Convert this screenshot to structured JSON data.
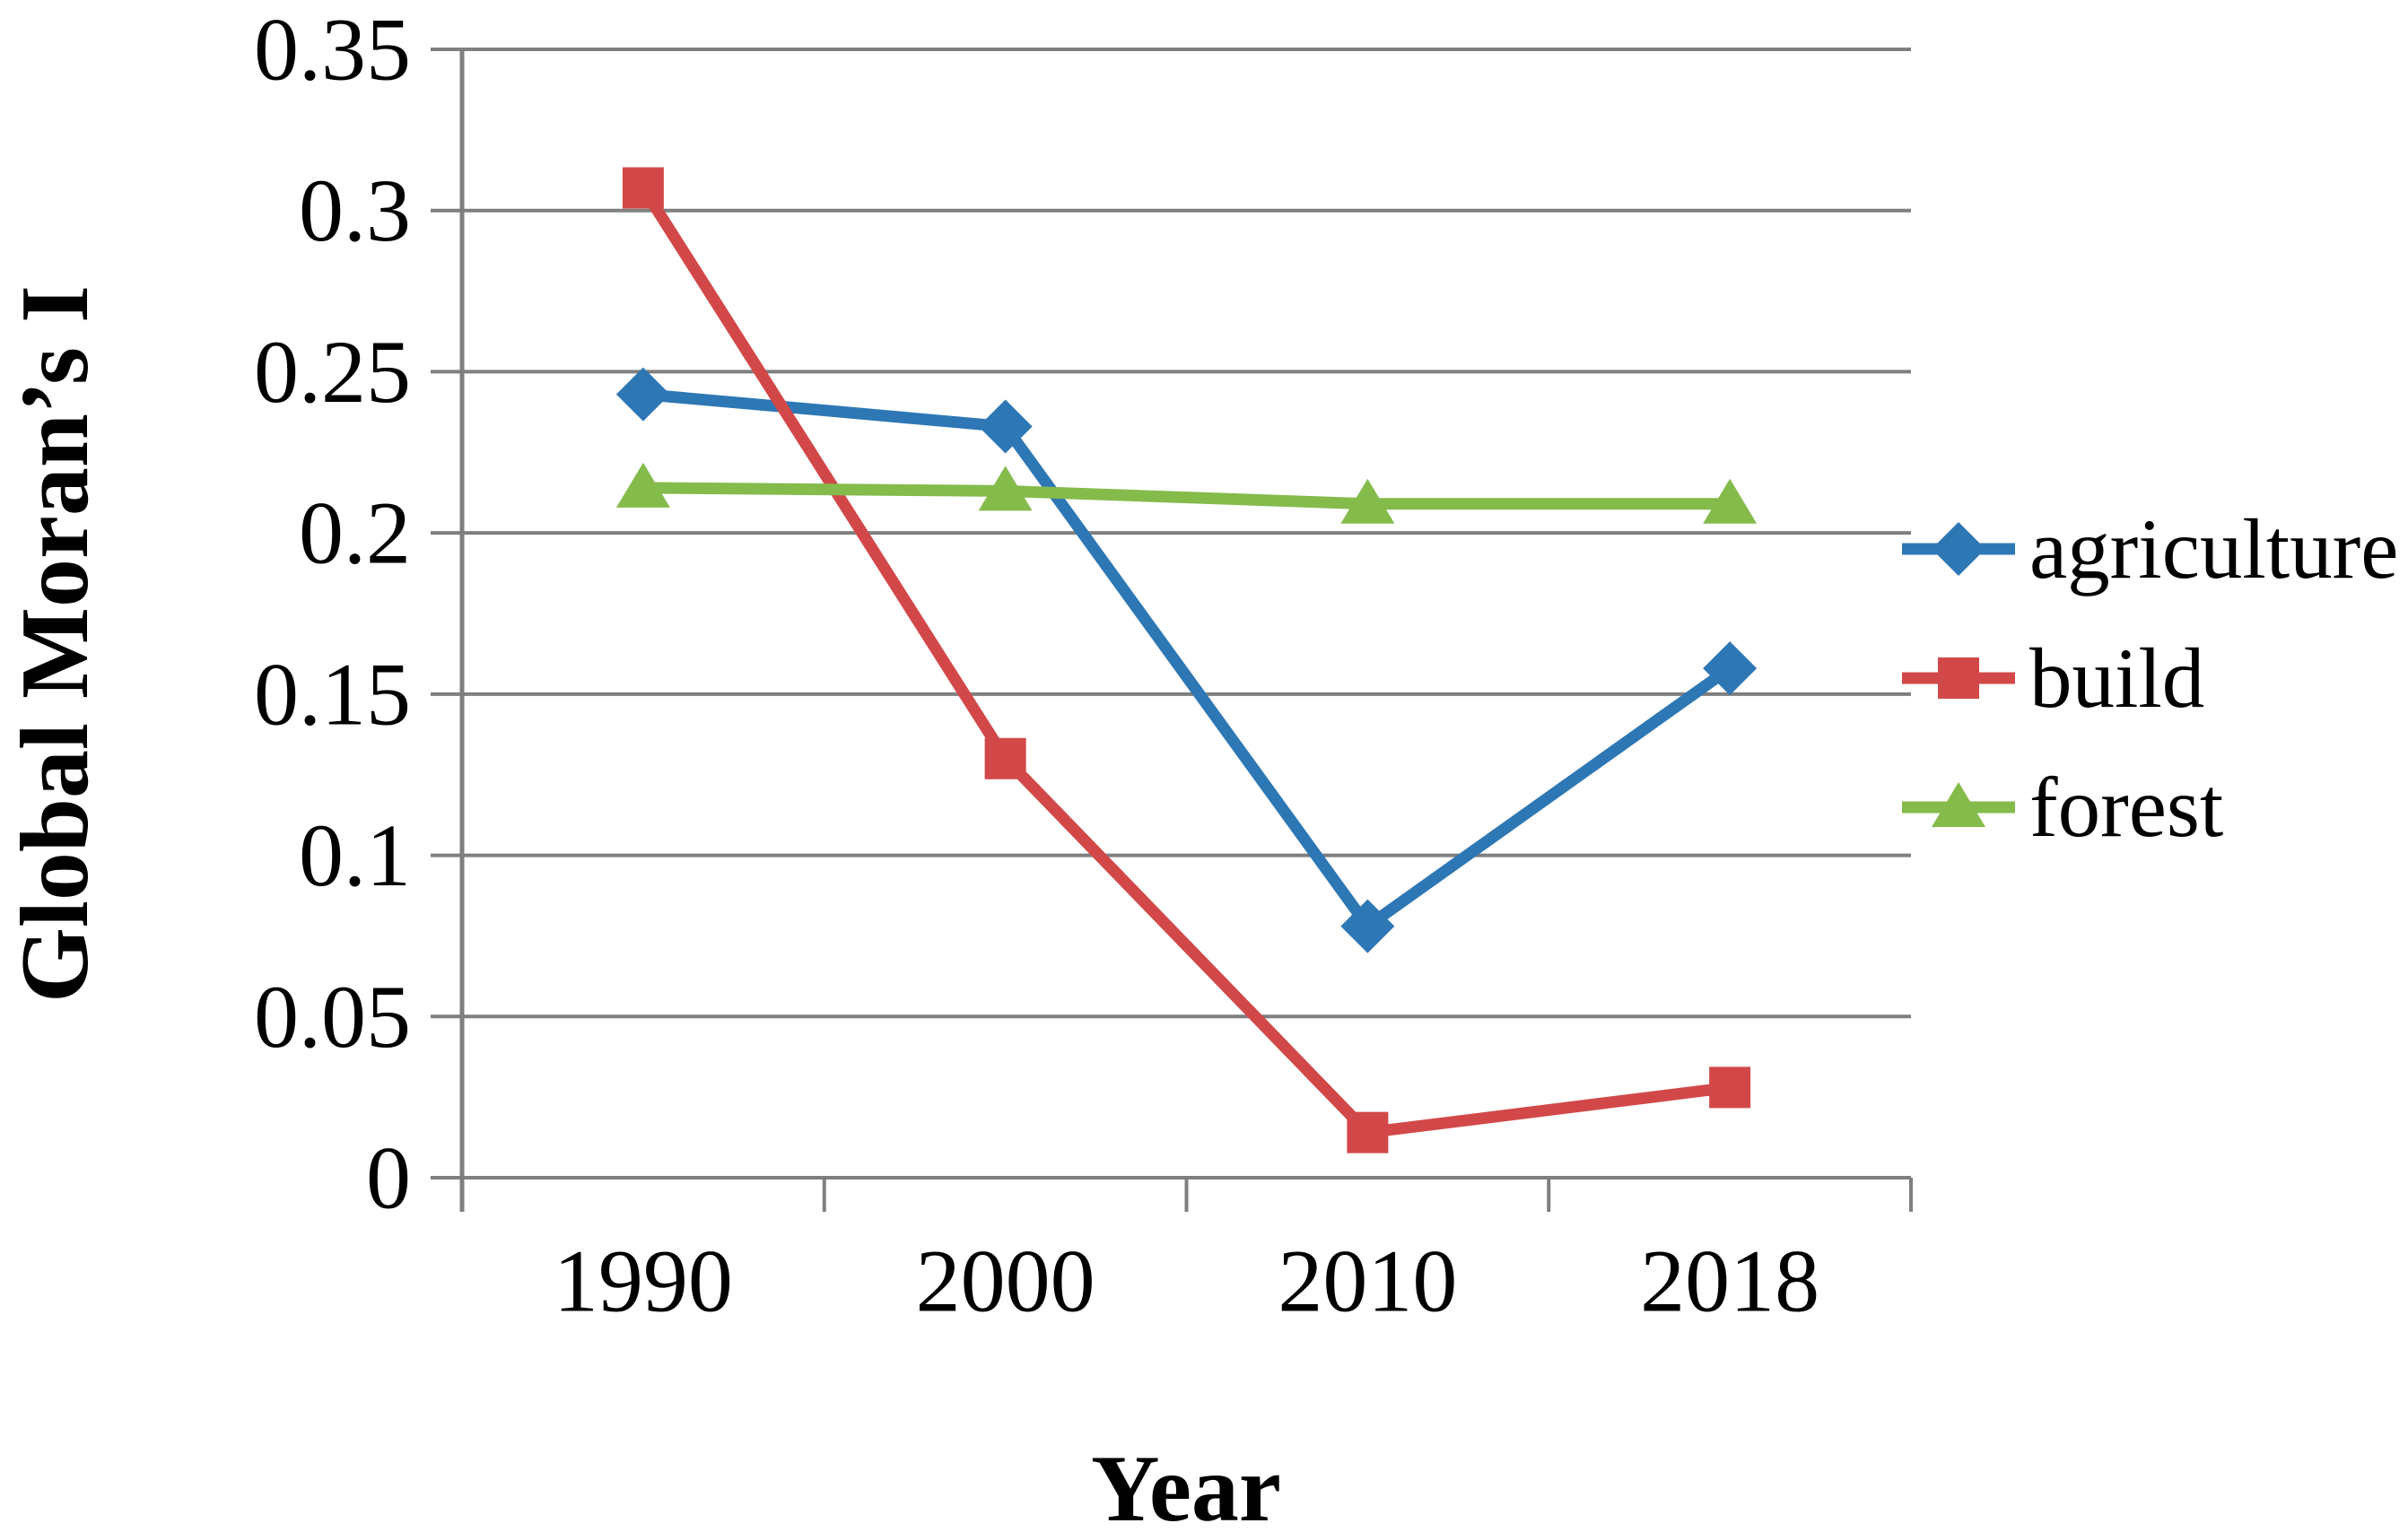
{
  "figure": {
    "y_axis_title": "Global Moran’s I",
    "x_axis_title": "Year"
  },
  "chart_data": {
    "type": "line",
    "title": "",
    "xlabel": "Year",
    "ylabel": "Global Moran’s I",
    "categories": [
      "1990",
      "2000",
      "2010",
      "2018"
    ],
    "series": [
      {
        "name": "agriculture",
        "marker": "diamond",
        "color": "#2E77B5",
        "values": [
          0.243,
          0.233,
          0.078,
          0.158
        ]
      },
      {
        "name": "build",
        "marker": "square",
        "color": "#D24849",
        "values": [
          0.307,
          0.13,
          0.014,
          0.028
        ]
      },
      {
        "name": "forest",
        "marker": "triangle",
        "color": "#84BB4B",
        "values": [
          0.214,
          0.213,
          0.209,
          0.209
        ]
      }
    ],
    "ylim": [
      0,
      0.35
    ],
    "ytick_step": 0.05,
    "ytick_labels": [
      "0",
      "0.05",
      "0.1",
      "0.15",
      "0.2",
      "0.25",
      "0.3",
      "0.35"
    ],
    "grid": true,
    "legend_position": "right",
    "style": {
      "grid_color": "#7F7F7F",
      "axis_color": "#7F7F7F",
      "text_color": "#000000",
      "background": "#FFFFFF"
    }
  }
}
